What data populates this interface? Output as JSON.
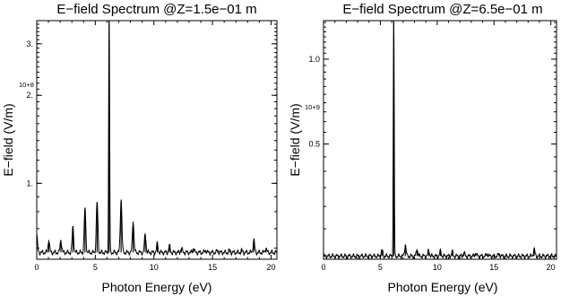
{
  "chart_data": [
    {
      "type": "line",
      "title": "E−field Spectrum @Z=1.5e−01 m",
      "xlabel": "Photon Energy (eV)",
      "ylabel": "E−field (V/m)",
      "multiplier": "10+8",
      "y_scale": "log",
      "xlim": [
        0,
        20.5
      ],
      "ylim": [
        0.55,
        3.6
      ],
      "grid": false,
      "x_ticks": [
        "0",
        "5",
        "10",
        "15",
        "20"
      ],
      "x_tick_values": [
        0,
        5,
        10,
        15,
        20
      ],
      "y_ticks": [
        "1.",
        "2.",
        "3."
      ],
      "y_tick_values": [
        1,
        2,
        3
      ],
      "baseline": 0.58,
      "peaks": [
        {
          "x": 0.0,
          "y": 0.66
        },
        {
          "x": 1.03,
          "y": 0.64
        },
        {
          "x": 2.06,
          "y": 0.64
        },
        {
          "x": 3.09,
          "y": 0.71
        },
        {
          "x": 4.12,
          "y": 0.82
        },
        {
          "x": 5.15,
          "y": 0.86
        },
        {
          "x": 6.18,
          "y": 3.6
        },
        {
          "x": 7.2,
          "y": 0.88
        },
        {
          "x": 8.23,
          "y": 0.74
        },
        {
          "x": 9.26,
          "y": 0.67
        },
        {
          "x": 10.29,
          "y": 0.62
        },
        {
          "x": 11.32,
          "y": 0.61
        },
        {
          "x": 12.35,
          "y": 0.6
        },
        {
          "x": 13.38,
          "y": 0.6
        },
        {
          "x": 14.41,
          "y": 0.59
        },
        {
          "x": 15.44,
          "y": 0.59
        },
        {
          "x": 16.47,
          "y": 0.59
        },
        {
          "x": 17.5,
          "y": 0.59
        },
        {
          "x": 18.53,
          "y": 0.64
        },
        {
          "x": 19.56,
          "y": 0.6
        }
      ]
    },
    {
      "type": "line",
      "title": "E−field Spectrum @Z=6.5e−01 m",
      "xlabel": "Photon Energy (eV)",
      "ylabel": "E−field (V/m)",
      "multiplier": "10+9",
      "y_scale": "log",
      "xlim": [
        0,
        20.5
      ],
      "ylim": [
        0.195,
        1.37
      ],
      "grid": false,
      "x_ticks": [
        "0",
        "5",
        "10",
        "15",
        "20"
      ],
      "x_tick_values": [
        0,
        5,
        10,
        15,
        20
      ],
      "y_ticks": [
        "0.5",
        "1.0"
      ],
      "y_tick_values": [
        0.5,
        1.0
      ],
      "baseline": 0.2,
      "peaks": [
        {
          "x": 5.15,
          "y": 0.21
        },
        {
          "x": 6.18,
          "y": 1.37
        },
        {
          "x": 7.2,
          "y": 0.22
        },
        {
          "x": 8.23,
          "y": 0.212
        },
        {
          "x": 9.26,
          "y": 0.21
        },
        {
          "x": 10.29,
          "y": 0.208
        },
        {
          "x": 11.32,
          "y": 0.207
        },
        {
          "x": 12.35,
          "y": 0.206
        },
        {
          "x": 13.38,
          "y": 0.205
        },
        {
          "x": 14.41,
          "y": 0.204
        },
        {
          "x": 15.44,
          "y": 0.204
        },
        {
          "x": 18.53,
          "y": 0.212
        }
      ]
    }
  ]
}
